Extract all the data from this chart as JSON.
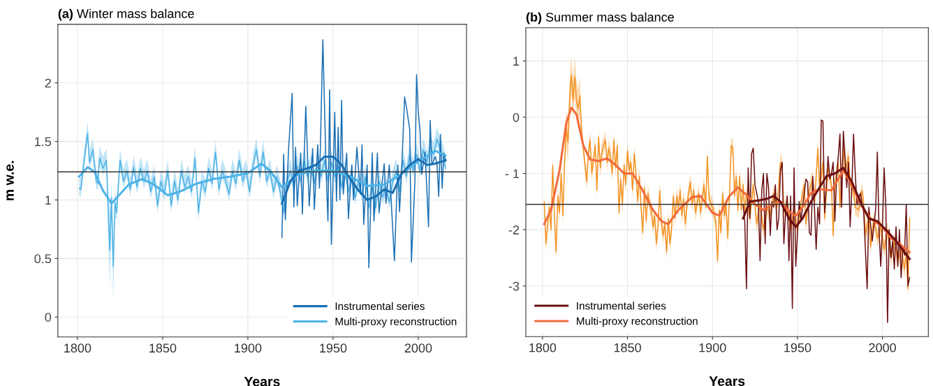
{
  "chart_data": [
    {
      "type": "line",
      "title": "(a) Winter mass balance",
      "xlabel": "Years",
      "ylabel": "m w.e.",
      "xlim": [
        1788.5,
        2028.3
      ],
      "ylim": [
        -0.17,
        2.5
      ],
      "xticks": [
        1800,
        1850,
        1900,
        1950,
        2000
      ],
      "yticks": [
        0,
        0.5,
        1,
        1.5,
        2
      ],
      "grid": true,
      "legend": "bottom right",
      "ref_lines": [
        {
          "axis": "y",
          "value": 1.24,
          "color": "#333333"
        }
      ],
      "series": [
        {
          "color": "#4eb3e6",
          "x": [
            1801,
            1802,
            1804,
            1806,
            1807,
            1809,
            1811,
            1812,
            1813,
            1815,
            1817,
            1818,
            1819,
            1820,
            1821,
            1822,
            1823,
            1825,
            1827,
            1829,
            1831,
            1833,
            1835,
            1837,
            1839,
            1841,
            1843,
            1845,
            1847,
            1849,
            1851,
            1853,
            1855,
            1857,
            1859,
            1861,
            1863,
            1865,
            1867,
            1869,
            1871,
            1873,
            1875,
            1877,
            1879,
            1881,
            1883,
            1885,
            1887,
            1889,
            1891,
            1893,
            1895,
            1897,
            1899,
            1901,
            1903,
            1905,
            1907,
            1909,
            1911,
            1913,
            1915,
            1917,
            1919,
            1921,
            1923,
            1925,
            1927,
            1929,
            1931,
            1933,
            1935,
            1937,
            1939,
            1941,
            1943,
            1945,
            1947,
            1949,
            1951,
            1953,
            1955,
            1957,
            1959,
            1961,
            1963,
            1965,
            1967,
            1969,
            1971,
            1973,
            1975,
            1977,
            1979,
            1981,
            1983,
            1985,
            1987,
            1989,
            1991,
            1993,
            1995,
            1997,
            1999,
            2001,
            2003,
            2005,
            2007,
            2009,
            2011,
            2013,
            2015,
            2016
          ],
          "values": [
            1.1,
            1.09,
            1.34,
            1.57,
            1.32,
            1.43,
            1.16,
            1.14,
            1.36,
            1.27,
            1.34,
            0.93,
            0.57,
            1.02,
            0.43,
            0.98,
            0.89,
            1.34,
            1.16,
            1.25,
            1.09,
            1.28,
            1.11,
            1.27,
            1.16,
            1.25,
            1.07,
            1.2,
            0.95,
            1.16,
            1.05,
            1.25,
            0.95,
            1.16,
            1.0,
            1.25,
            1.11,
            1.2,
            1.07,
            1.36,
            0.89,
            1.16,
            1.07,
            1.27,
            1.14,
            1.41,
            1.09,
            1.25,
            1.16,
            1.05,
            1.25,
            1.14,
            1.34,
            1.16,
            1.25,
            1.07,
            1.29,
            1.43,
            1.2,
            1.41,
            1.16,
            1.25,
            1.07,
            1.2,
            1.07,
            0.89,
            1.16,
            1.25,
            1.11,
            1.29,
            1.16,
            1.34,
            1.2,
            1.29,
            1.14,
            1.32,
            1.2,
            1.34,
            1.16,
            1.32,
            1.2,
            1.29,
            1.11,
            1.25,
            1.07,
            1.2,
            1.02,
            1.16,
            1.05,
            1.2,
            0.93,
            1.11,
            0.93,
            1.16,
            1.02,
            1.11,
            0.98,
            1.16,
            1.25,
            1.07,
            1.34,
            1.2,
            1.39,
            1.25,
            1.39,
            1.25,
            1.43,
            1.32,
            1.45,
            1.39,
            1.52,
            1.43,
            1.36,
            1.27
          ],
          "lower": [
            1.04,
            1.03,
            1.28,
            1.51,
            1.26,
            1.37,
            1.1,
            1.08,
            1.3,
            1.21,
            1.28,
            0.7,
            0.25,
            0.9,
            0.12,
            0.85,
            0.83,
            1.28,
            1.1,
            1.19,
            1.03,
            1.22,
            1.05,
            1.21,
            1.1,
            1.19,
            1.01,
            1.14,
            0.89,
            1.1,
            0.99,
            1.19,
            0.89,
            1.1,
            0.94,
            1.19,
            1.05,
            1.14,
            1.01,
            1.3,
            0.83,
            1.1,
            1.01,
            1.21,
            1.08,
            1.35,
            1.03,
            1.19,
            1.1,
            0.99,
            1.19,
            1.08,
            1.28,
            1.1,
            1.19,
            1.01,
            1.23,
            1.37,
            1.14,
            1.35,
            1.1,
            1.19,
            1.01,
            1.14,
            1.01,
            0.83,
            1.1,
            1.19,
            1.05,
            1.23,
            1.1,
            1.28,
            1.14,
            1.23,
            1.08,
            1.26,
            1.14,
            1.28,
            1.1,
            1.26,
            1.14,
            1.23,
            1.05,
            1.19,
            1.01,
            1.14,
            0.96,
            1.1,
            0.99,
            1.14,
            0.87,
            1.05,
            0.87,
            1.1,
            0.96,
            1.05,
            0.92,
            1.1,
            1.19,
            1.01,
            1.28,
            1.14,
            1.33,
            1.19,
            1.33,
            1.19,
            1.37,
            1.26,
            1.39,
            1.33,
            1.46,
            1.37,
            1.3,
            1.21
          ],
          "upper": [
            1.2,
            1.19,
            1.44,
            1.67,
            1.42,
            1.53,
            1.26,
            1.24,
            1.46,
            1.37,
            1.44,
            1.1,
            0.9,
            1.15,
            0.55,
            1.08,
            0.99,
            1.44,
            1.26,
            1.35,
            1.19,
            1.38,
            1.21,
            1.37,
            1.26,
            1.35,
            1.17,
            1.3,
            1.05,
            1.26,
            1.15,
            1.35,
            1.05,
            1.26,
            1.1,
            1.35,
            1.21,
            1.3,
            1.17,
            1.46,
            0.99,
            1.26,
            1.17,
            1.37,
            1.24,
            1.51,
            1.19,
            1.35,
            1.26,
            1.15,
            1.35,
            1.24,
            1.44,
            1.26,
            1.35,
            1.17,
            1.39,
            1.53,
            1.3,
            1.51,
            1.26,
            1.35,
            1.17,
            1.3,
            1.17,
            0.99,
            1.26,
            1.35,
            1.21,
            1.39,
            1.26,
            1.44,
            1.3,
            1.39,
            1.24,
            1.42,
            1.3,
            1.44,
            1.26,
            1.42,
            1.3,
            1.39,
            1.21,
            1.35,
            1.17,
            1.3,
            1.12,
            1.26,
            1.15,
            1.3,
            1.03,
            1.21,
            1.03,
            1.26,
            1.12,
            1.21,
            1.08,
            1.26,
            1.35,
            1.17,
            1.44,
            1.3,
            1.49,
            1.35,
            1.49,
            1.35,
            1.53,
            1.42,
            1.55,
            1.49,
            1.62,
            1.53,
            1.46,
            1.37
          ]
        },
        {
          "name": "Instrumental series",
          "color": "#1b6fb3",
          "x": [
            1920,
            1921,
            1922,
            1924,
            1926,
            1927,
            1928,
            1929,
            1931,
            1932,
            1934,
            1936,
            1938,
            1939,
            1941,
            1942,
            1944,
            1946,
            1947,
            1948,
            1949,
            1951,
            1952,
            1953,
            1954,
            1955,
            1956,
            1958,
            1959,
            1961,
            1962,
            1964,
            1966,
            1967,
            1968,
            1970,
            1971,
            1973,
            1974,
            1976,
            1977,
            1980,
            1981,
            1983,
            1986,
            1988,
            1989,
            1990,
            1992,
            1993,
            1995,
            1996,
            1998,
            1999,
            2000,
            2001,
            2002,
            2004,
            2005,
            2006,
            2007,
            2008,
            2010,
            2011,
            2012,
            2013,
            2014,
            2015,
            2016
          ],
          "values": [
            0.68,
            1.39,
            0.83,
            1.46,
            1.91,
            0.94,
            1.45,
            0.95,
            1.4,
            0.88,
            1.8,
            0.95,
            1.44,
            0.92,
            1.47,
            1.1,
            2.37,
            1.21,
            0.82,
            1.94,
            0.62,
            1.75,
            0.99,
            1.62,
            1.0,
            1.85,
            1.05,
            1.4,
            0.84,
            1.3,
            1.0,
            1.45,
            1.05,
            1.47,
            0.79,
            1.3,
            0.42,
            1.4,
            0.82,
            1.4,
            0.89,
            1.31,
            0.97,
            1.3,
            0.48,
            1.3,
            0.9,
            1.17,
            1.88,
            1.8,
            1.6,
            0.47,
            1.15,
            2.07,
            1.75,
            1.6,
            1.22,
            1.41,
            1.1,
            0.77,
            1.68,
            1.3,
            1.37,
            1.3,
            1.03,
            1.56,
            1.1,
            1.4,
            1.33
          ]
        },
        {
          "name": "Multi-proxy reconstruction",
          "color": "#4eb3e6",
          "x": [
            1801,
            1806,
            1810,
            1815,
            1820,
            1825,
            1830,
            1838,
            1845,
            1853,
            1860,
            1870,
            1880,
            1890,
            1900,
            1908,
            1913,
            1920,
            1930,
            1940,
            1950,
            1960,
            1970,
            1980,
            1990,
            2000,
            2010,
            2016
          ],
          "values": [
            1.2,
            1.28,
            1.24,
            1.08,
            0.97,
            1.05,
            1.13,
            1.18,
            1.13,
            1.04,
            1.07,
            1.14,
            1.18,
            1.2,
            1.23,
            1.31,
            1.25,
            1.11,
            1.22,
            1.25,
            1.25,
            1.2,
            1.12,
            1.13,
            1.22,
            1.33,
            1.42,
            1.38
          ]
        },
        {
          "color": "#1b6fb3",
          "x": [
            1920,
            1925,
            1930,
            1935,
            1940,
            1945,
            1950,
            1955,
            1960,
            1965,
            1970,
            1975,
            1980,
            1985,
            1990,
            1995,
            2000,
            2005,
            2010,
            2016
          ],
          "values": [
            0.97,
            1.16,
            1.25,
            1.27,
            1.3,
            1.37,
            1.37,
            1.3,
            1.18,
            1.08,
            1.0,
            1.03,
            1.09,
            1.06,
            1.22,
            1.3,
            1.35,
            1.3,
            1.31,
            1.34
          ]
        }
      ]
    },
    {
      "type": "line",
      "title": "(b) Summer mass balance",
      "xlabel": "Years",
      "xlim": [
        1790.2,
        2027
      ],
      "ylim": [
        -3.9,
        1.59
      ],
      "xticks": [
        1800,
        1850,
        1900,
        1950,
        2000
      ],
      "yticks": [
        1,
        0,
        {
          "value": -1,
          "label": "- 1"
        },
        -2,
        -3
      ],
      "grid": true,
      "legend": "bottom left",
      "ref_lines": [
        {
          "axis": "y",
          "value": -1.55,
          "color": "#333333"
        }
      ],
      "series": [
        {
          "color": "#f39425",
          "x": [
            1801,
            1802,
            1804,
            1805,
            1806,
            1807,
            1808,
            1809,
            1810,
            1811,
            1812,
            1813,
            1814,
            1815,
            1816,
            1817,
            1818,
            1819,
            1820,
            1821,
            1822,
            1823,
            1824,
            1825,
            1826,
            1827,
            1828,
            1829,
            1830,
            1831,
            1832,
            1833,
            1834,
            1835,
            1837,
            1838,
            1839,
            1840,
            1841,
            1842,
            1843,
            1844,
            1845,
            1846,
            1847,
            1848,
            1849,
            1850,
            1851,
            1852,
            1853,
            1854,
            1855,
            1856,
            1857,
            1858,
            1859,
            1860,
            1861,
            1862,
            1863,
            1864,
            1865,
            1866,
            1867,
            1868,
            1869,
            1870,
            1871,
            1872,
            1873,
            1874,
            1875,
            1876,
            1877,
            1878,
            1879,
            1880,
            1881,
            1882,
            1883,
            1884,
            1885,
            1887,
            1888,
            1889,
            1890,
            1892,
            1893,
            1895,
            1896,
            1897,
            1898,
            1900,
            1902,
            1903,
            1904,
            1905,
            1906,
            1907,
            1908,
            1909,
            1910,
            1911,
            1912,
            1913,
            1914,
            1915,
            1916,
            1917,
            1918,
            1919,
            1920,
            1922,
            1924,
            1926,
            1928,
            1930,
            1932,
            1934,
            1936,
            1938,
            1940,
            1941,
            1942,
            1944,
            1946,
            1948,
            1950,
            1952,
            1954,
            1955,
            1957,
            1959,
            1960,
            1962,
            1963,
            1965,
            1966,
            1968,
            1970,
            1971,
            1972,
            1974,
            1975,
            1977,
            1978,
            1980,
            1981,
            1983,
            1984,
            1986,
            1988,
            1989,
            1990,
            1992,
            1993,
            1995,
            1997,
            1999,
            2001,
            2003,
            2005,
            2007,
            2009,
            2011,
            2013,
            2014,
            2015,
            2016
          ],
          "values": [
            -1.5,
            -2.25,
            -1.6,
            -2.0,
            -0.85,
            -1.75,
            -2.4,
            -1.4,
            -1.7,
            -1.0,
            -1.75,
            -0.8,
            -0.2,
            -0.45,
            0.35,
            0.75,
            0.3,
            0.72,
            0.3,
            0.15,
            0.38,
            -0.25,
            -0.55,
            -0.85,
            -1.15,
            -0.65,
            -0.4,
            -1.0,
            -0.75,
            -0.5,
            -1.3,
            -0.35,
            -0.9,
            -0.6,
            -0.4,
            -0.8,
            -0.55,
            -0.7,
            -1.0,
            -0.4,
            -0.9,
            -0.5,
            -1.7,
            -1.1,
            -1.55,
            -0.85,
            -1.2,
            -0.6,
            -0.95,
            -0.8,
            -1.3,
            -0.65,
            -1.0,
            -1.5,
            -1.05,
            -1.6,
            -2.05,
            -1.25,
            -1.85,
            -1.35,
            -1.55,
            -1.65,
            -1.95,
            -1.75,
            -2.25,
            -1.9,
            -1.3,
            -1.9,
            -2.1,
            -1.9,
            -2.4,
            -1.8,
            -2.25,
            -1.95,
            -1.4,
            -1.8,
            -1.4,
            -1.6,
            -1.3,
            -1.75,
            -1.45,
            -1.9,
            -1.55,
            -1.15,
            -1.55,
            -1.3,
            -1.7,
            -1.35,
            -1.7,
            -1.2,
            -1.6,
            -0.7,
            -1.45,
            -1.6,
            -1.85,
            -2.55,
            -1.65,
            -2.05,
            -1.35,
            -1.75,
            -1.55,
            -2.15,
            -1.4,
            -0.5,
            -0.55,
            -1.4,
            -1.05,
            -1.65,
            -1.05,
            -1.65,
            -1.2,
            -1.7,
            -1.35,
            -1.8,
            -1.2,
            -1.9,
            -1.55,
            -2.0,
            -1.6,
            -1.75,
            -1.35,
            -1.6,
            -0.8,
            -0.85,
            -1.7,
            -1.5,
            -2.0,
            -1.65,
            -2.0,
            -1.55,
            -1.2,
            -1.9,
            -1.3,
            -1.1,
            -1.55,
            -0.55,
            -1.3,
            -0.8,
            -1.8,
            -0.9,
            -1.2,
            -2.1,
            -1.2,
            -0.8,
            -1.6,
            -0.5,
            -1.0,
            -0.7,
            -1.2,
            -1.3,
            -1.6,
            -1.65,
            -1.3,
            -1.55,
            -2.1,
            -1.75,
            -2.3,
            -1.8,
            -2.15,
            -1.95,
            -2.35,
            -2.0,
            -2.5,
            -2.2,
            -2.55,
            -2.35,
            -2.7,
            -2.4,
            -3.05,
            -1.8
          ],
          "lower": [
            -1.65,
            -2.4,
            -1.75,
            -2.15,
            -1.0,
            -1.9,
            -2.55,
            -1.55,
            -1.85,
            -1.15,
            -1.9,
            -0.95,
            -0.55,
            -0.8,
            0.0,
            0.4,
            -0.05,
            0.37,
            -0.05,
            -0.2,
            0.03,
            -0.4,
            -0.7,
            -1.0,
            -1.3,
            -0.8,
            -0.55,
            -1.15,
            -0.9,
            -0.65,
            -1.45,
            -0.5,
            -1.05,
            -0.75,
            -0.55,
            -0.95,
            -0.7,
            -0.85,
            -1.15,
            -0.55,
            -1.05,
            -0.65,
            -1.85,
            -1.25,
            -1.7,
            -1.0,
            -1.35,
            -0.75,
            -1.1,
            -0.95,
            -1.45,
            -0.8,
            -1.15,
            -1.65,
            -1.2,
            -1.75,
            -2.2,
            -1.4,
            -2.0,
            -1.5,
            -1.7,
            -1.8,
            -2.1,
            -1.9,
            -2.4,
            -2.05,
            -1.45,
            -2.05,
            -2.25,
            -2.05,
            -2.55,
            -1.95,
            -2.4,
            -2.1,
            -1.55,
            -1.95,
            -1.55,
            -1.75,
            -1.45,
            -1.9,
            -1.6,
            -2.05,
            -1.7,
            -1.3,
            -1.7,
            -1.45,
            -1.85,
            -1.5,
            -1.85,
            -1.35,
            -1.75,
            -0.85,
            -1.6,
            -1.75,
            -2.0,
            -2.7,
            -1.8,
            -2.2,
            -1.5,
            -1.9,
            -1.7,
            -2.3,
            -1.55,
            -0.65,
            -0.7,
            -1.55,
            -1.2,
            -1.8,
            -1.2,
            -1.8,
            -1.35,
            -1.85,
            -1.5,
            -1.95,
            -1.35,
            -2.05,
            -1.7,
            -2.15,
            -1.75,
            -1.9,
            -1.5,
            -1.75,
            -0.95,
            -1.0,
            -1.85,
            -1.65,
            -2.15,
            -1.8,
            -2.15,
            -1.7,
            -1.35,
            -2.05,
            -1.45,
            -1.25,
            -1.7,
            -0.7,
            -1.45,
            -0.95,
            -1.95,
            -1.05,
            -1.35,
            -2.25,
            -1.35,
            -0.95,
            -1.75,
            -0.65,
            -1.15,
            -0.85,
            -1.35,
            -1.45,
            -1.75,
            -1.8,
            -1.45,
            -1.7,
            -2.25,
            -1.9,
            -2.45,
            -1.95,
            -2.3,
            -2.1,
            -2.5,
            -2.15,
            -2.65,
            -2.35,
            -2.7,
            -2.5,
            -2.85,
            -2.55,
            -3.2,
            -1.95
          ],
          "upper": [
            -1.35,
            -2.1,
            -1.45,
            -1.85,
            -0.7,
            -1.6,
            -2.25,
            -1.25,
            -1.55,
            -0.85,
            -1.6,
            -0.65,
            0.15,
            -0.1,
            0.7,
            1.1,
            0.65,
            1.07,
            0.65,
            0.5,
            0.73,
            -0.1,
            -0.4,
            -0.7,
            -1.0,
            -0.5,
            -0.25,
            -0.85,
            -0.6,
            -0.35,
            -1.15,
            -0.2,
            -0.75,
            -0.45,
            -0.25,
            -0.65,
            -0.4,
            -0.55,
            -0.85,
            -0.25,
            -0.75,
            -0.35,
            -1.55,
            -0.95,
            -1.4,
            -0.7,
            -1.05,
            -0.45,
            -0.8,
            -0.65,
            -1.15,
            -0.5,
            -0.85,
            -1.35,
            -0.9,
            -1.45,
            -1.9,
            -1.1,
            -1.7,
            -1.2,
            -1.4,
            -1.5,
            -1.8,
            -1.6,
            -2.1,
            -1.75,
            -1.15,
            -1.75,
            -1.95,
            -1.75,
            -2.25,
            -1.65,
            -2.1,
            -1.8,
            -1.25,
            -1.65,
            -1.25,
            -1.45,
            -1.15,
            -1.6,
            -1.3,
            -1.75,
            -1.4,
            -1.0,
            -1.4,
            -1.15,
            -1.55,
            -1.2,
            -1.55,
            -1.05,
            -1.45,
            -0.55,
            -1.3,
            -1.45,
            -1.7,
            -2.4,
            -1.5,
            -1.9,
            -1.2,
            -1.6,
            -1.4,
            -2.0,
            -1.25,
            -0.35,
            -0.4,
            -1.25,
            -0.9,
            -1.5,
            -0.9,
            -1.5,
            -1.05,
            -1.55,
            -1.2,
            -1.65,
            -1.05,
            -1.75,
            -1.4,
            -1.85,
            -1.45,
            -1.6,
            -1.2,
            -1.45,
            -0.65,
            -0.7,
            -1.55,
            -1.35,
            -1.85,
            -1.5,
            -1.85,
            -1.4,
            -1.05,
            -1.75,
            -1.15,
            -0.95,
            -1.4,
            -0.4,
            -1.15,
            -0.65,
            -1.65,
            -0.75,
            -1.05,
            -1.95,
            -1.05,
            -0.65,
            -1.45,
            -0.35,
            -0.85,
            -0.55,
            -1.05,
            -1.15,
            -1.45,
            -1.5,
            -1.15,
            -1.4,
            -1.95,
            -1.6,
            -2.15,
            -1.65,
            -2.0,
            -1.8,
            -2.2,
            -1.85,
            -2.35,
            -2.05,
            -2.4,
            -2.2,
            -2.55,
            -2.25,
            -2.9,
            -1.65
          ]
        },
        {
          "name": "Instrumental series",
          "color": "#6b0f12",
          "x": [
            1918,
            1919,
            1920,
            1921,
            1922,
            1923,
            1924,
            1925,
            1927,
            1928,
            1929,
            1930,
            1931,
            1932,
            1933,
            1934,
            1935,
            1936,
            1937,
            1938,
            1939,
            1940,
            1941,
            1942,
            1943,
            1944,
            1945,
            1946,
            1947,
            1948,
            1949,
            1951,
            1952,
            1954,
            1955,
            1956,
            1957,
            1958,
            1959,
            1960,
            1961,
            1962,
            1963,
            1964,
            1965,
            1966,
            1968,
            1969,
            1970,
            1971,
            1972,
            1973,
            1975,
            1976,
            1977,
            1978,
            1979,
            1980,
            1981,
            1982,
            1983,
            1984,
            1985,
            1987,
            1989,
            1991,
            1992,
            1994,
            1996,
            1997,
            1998,
            1999,
            2000,
            2001,
            2002,
            2003,
            2004,
            2005,
            2006,
            2007,
            2008,
            2009,
            2010,
            2011,
            2012,
            2013,
            2014,
            2015,
            2016
          ],
          "values": [
            -1.55,
            -1.85,
            -3.05,
            -0.9,
            -1.8,
            -0.65,
            -0.55,
            -1.2,
            -1.5,
            -2.55,
            -1.3,
            -1.0,
            -2.25,
            -1.0,
            -1.25,
            -2.1,
            -1.5,
            -1.6,
            -1.2,
            -2.0,
            -1.8,
            -0.95,
            -0.8,
            -2.25,
            -1.7,
            -1.4,
            -2.55,
            -1.4,
            -3.4,
            -0.9,
            -2.65,
            -1.5,
            -1.85,
            -1.35,
            -1.1,
            -1.15,
            -2.05,
            -2.1,
            -1.05,
            -1.6,
            -2.35,
            -1.6,
            -1.9,
            -0.05,
            -0.07,
            -1.7,
            -0.7,
            -1.1,
            -1.0,
            -0.8,
            -1.85,
            -1.1,
            -0.3,
            -1.6,
            -0.25,
            -0.7,
            -1.25,
            -0.8,
            -1.95,
            -1.25,
            -0.3,
            -1.0,
            -1.55,
            -1.35,
            -1.7,
            -3.05,
            -1.6,
            -2.2,
            -1.65,
            -0.62,
            -2.0,
            -2.65,
            -1.95,
            -0.9,
            -1.6,
            -3.65,
            -2.0,
            -2.5,
            -2.2,
            -2.7,
            -1.95,
            -2.65,
            -2.0,
            -2.85,
            -2.3,
            -2.45,
            -1.55,
            -3.0,
            -2.85
          ]
        },
        {
          "name": "Multi-proxy reconstruction",
          "color": "#f26b3a",
          "x": [
            1801,
            1805,
            1810,
            1814,
            1817,
            1820,
            1824,
            1828,
            1833,
            1838,
            1843,
            1848,
            1853,
            1858,
            1865,
            1870,
            1874,
            1880,
            1888,
            1893,
            1900,
            1904,
            1910,
            1915,
            1920,
            1925,
            1930,
            1935,
            1940,
            1945,
            1949,
            1953,
            1958,
            1963,
            1970,
            1977,
            1982,
            1987,
            1993,
            2000,
            2005,
            2010,
            2016
          ],
          "values": [
            -1.9,
            -1.65,
            -0.95,
            -0.1,
            0.17,
            0.05,
            -0.5,
            -0.75,
            -0.78,
            -0.73,
            -0.85,
            -1.0,
            -1.0,
            -1.25,
            -1.65,
            -1.85,
            -1.9,
            -1.65,
            -1.42,
            -1.4,
            -1.7,
            -1.75,
            -1.4,
            -1.25,
            -1.38,
            -1.55,
            -1.65,
            -1.55,
            -1.5,
            -1.68,
            -1.75,
            -1.6,
            -1.35,
            -1.28,
            -1.3,
            -0.95,
            -1.2,
            -1.55,
            -1.8,
            -1.95,
            -2.15,
            -2.25,
            -2.4
          ]
        },
        {
          "color": "#6b0f12",
          "x": [
            1918,
            1922,
            1927,
            1932,
            1936,
            1940,
            1945,
            1949,
            1953,
            1958,
            1963,
            1967,
            1972,
            1977,
            1982,
            1987,
            1992,
            1997,
            2002,
            2008,
            2016
          ],
          "values": [
            -1.8,
            -1.5,
            -1.48,
            -1.45,
            -1.4,
            -1.5,
            -1.8,
            -1.95,
            -1.8,
            -1.5,
            -1.25,
            -1.05,
            -1.0,
            -0.9,
            -1.15,
            -1.5,
            -1.8,
            -1.85,
            -2.0,
            -2.2,
            -2.52
          ]
        }
      ]
    }
  ]
}
